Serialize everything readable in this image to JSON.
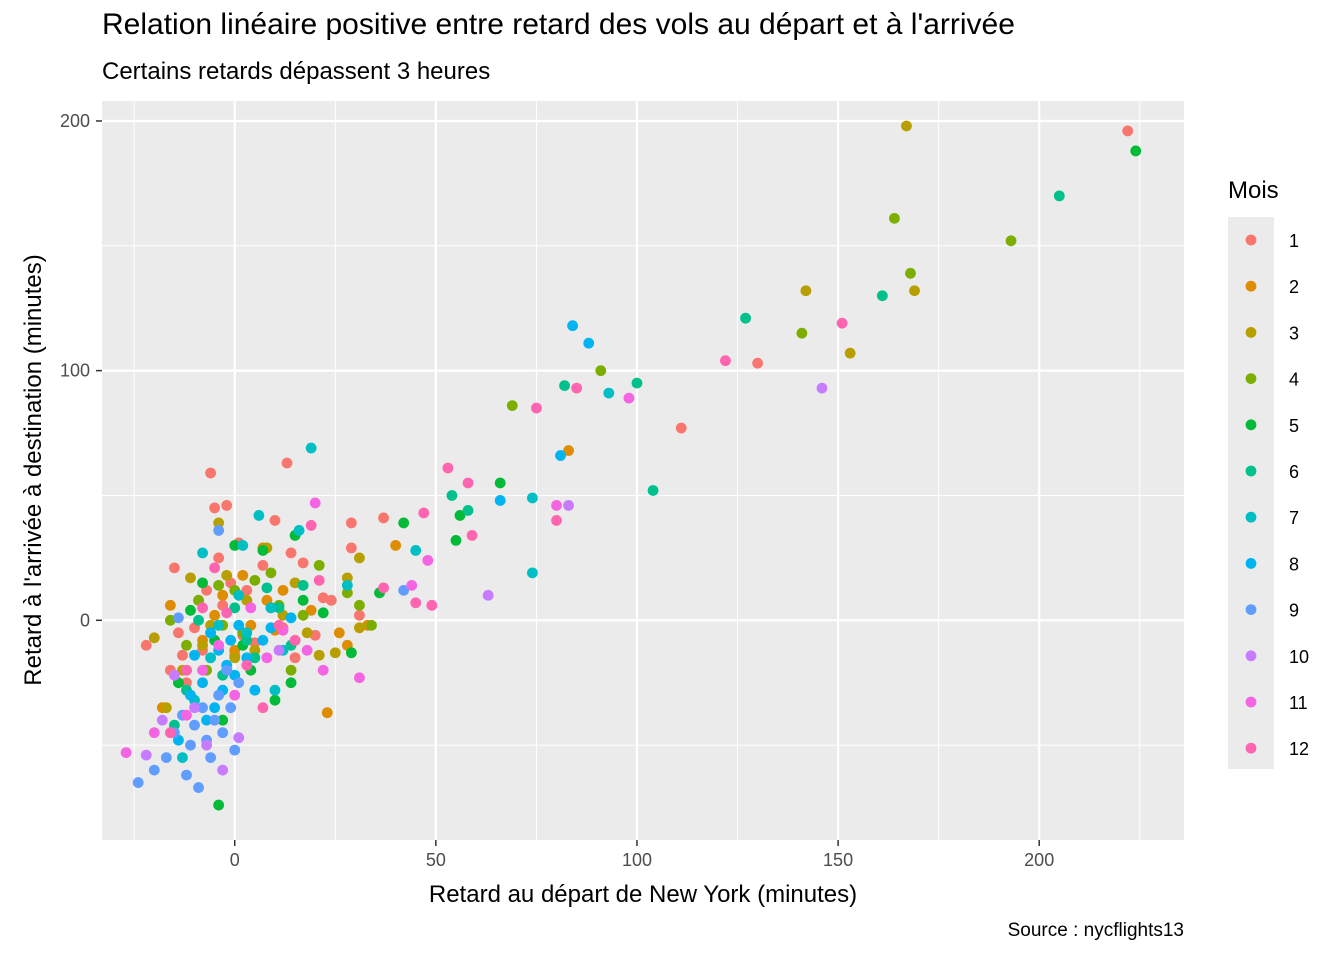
{
  "chart_data": {
    "type": "scatter",
    "title": "Relation linéaire positive entre retard des vols au départ et à l'arrivée",
    "subtitle": "Certains retards dépassent 3 heures",
    "caption": "Source : nycflights13",
    "xlabel": "Retard au départ de New York (minutes)",
    "ylabel": "Retard à l'arrivée à destination (minutes)",
    "xlim": [
      -33,
      236
    ],
    "ylim": [
      -88,
      208
    ],
    "x_ticks": [
      0,
      50,
      100,
      150,
      200
    ],
    "y_ticks": [
      0,
      100,
      200
    ],
    "grid": true,
    "legend": {
      "title": "Mois",
      "position": "right",
      "entries": [
        "1",
        "2",
        "3",
        "4",
        "5",
        "6",
        "7",
        "8",
        "9",
        "10",
        "11",
        "12"
      ]
    },
    "colors": [
      "#F8766D",
      "#DE8C00",
      "#B79F00",
      "#7CAE00",
      "#00BA38",
      "#00C08B",
      "#00BFC4",
      "#00B4F0",
      "#619CFF",
      "#C77CFF",
      "#F564E3",
      "#FF64B0"
    ],
    "series": [
      {
        "name": "1",
        "points": [
          [
            -22,
            -10
          ],
          [
            -16,
            -20
          ],
          [
            -15,
            21
          ],
          [
            -14,
            -5
          ],
          [
            -13,
            -14
          ],
          [
            -12,
            -25
          ],
          [
            -10,
            -3
          ],
          [
            -9,
            8
          ],
          [
            -8,
            -12
          ],
          [
            -7,
            12
          ],
          [
            -6,
            59
          ],
          [
            -5,
            45
          ],
          [
            -4,
            25
          ],
          [
            -3,
            6
          ],
          [
            -2,
            46
          ],
          [
            -1,
            15
          ],
          [
            0,
            -14
          ],
          [
            1,
            31
          ],
          [
            2,
            -6
          ],
          [
            3,
            12
          ],
          [
            5,
            -9
          ],
          [
            7,
            22
          ],
          [
            9,
            5
          ],
          [
            10,
            40
          ],
          [
            12,
            -3
          ],
          [
            13,
            63
          ],
          [
            14,
            27
          ],
          [
            15,
            -15
          ],
          [
            17,
            23
          ],
          [
            20,
            -6
          ],
          [
            22,
            9
          ],
          [
            24,
            8
          ],
          [
            29,
            39
          ],
          [
            29,
            29
          ],
          [
            31,
            2
          ],
          [
            37,
            41
          ],
          [
            130,
            103
          ],
          [
            111,
            77
          ],
          [
            222,
            196
          ]
        ]
      },
      {
        "name": "2",
        "points": [
          [
            -18,
            -35
          ],
          [
            -16,
            6
          ],
          [
            -12,
            -20
          ],
          [
            -8,
            -8
          ],
          [
            -5,
            2
          ],
          [
            -3,
            10
          ],
          [
            0,
            -12
          ],
          [
            2,
            18
          ],
          [
            4,
            -2
          ],
          [
            7,
            29
          ],
          [
            8,
            8
          ],
          [
            10,
            -4
          ],
          [
            12,
            12
          ],
          [
            15,
            -8
          ],
          [
            19,
            4
          ],
          [
            23,
            -37
          ],
          [
            26,
            -5
          ],
          [
            28,
            -10
          ],
          [
            33,
            -2
          ],
          [
            40,
            30
          ],
          [
            83,
            68
          ]
        ]
      },
      {
        "name": "3",
        "points": [
          [
            -20,
            -7
          ],
          [
            -17,
            -35
          ],
          [
            -13,
            -20
          ],
          [
            -11,
            17
          ],
          [
            -8,
            -10
          ],
          [
            -6,
            -2
          ],
          [
            -4,
            39
          ],
          [
            -2,
            18
          ],
          [
            0,
            -15
          ],
          [
            3,
            8
          ],
          [
            5,
            -12
          ],
          [
            8,
            29
          ],
          [
            12,
            2
          ],
          [
            15,
            15
          ],
          [
            18,
            -5
          ],
          [
            21,
            -14
          ],
          [
            25,
            -13
          ],
          [
            28,
            17
          ],
          [
            31,
            25
          ],
          [
            31,
            -3
          ],
          [
            142,
            132
          ],
          [
            153,
            107
          ],
          [
            167,
            198
          ],
          [
            169,
            132
          ]
        ]
      },
      {
        "name": "4",
        "points": [
          [
            -16,
            0
          ],
          [
            -12,
            -10
          ],
          [
            -9,
            8
          ],
          [
            -7,
            -20
          ],
          [
            -4,
            14
          ],
          [
            -3,
            -2
          ],
          [
            0,
            12
          ],
          [
            2,
            -5
          ],
          [
            5,
            16
          ],
          [
            9,
            19
          ],
          [
            11,
            6
          ],
          [
            14,
            -20
          ],
          [
            17,
            2
          ],
          [
            21,
            22
          ],
          [
            28,
            11
          ],
          [
            31,
            6
          ],
          [
            34,
            -2
          ],
          [
            69,
            86
          ],
          [
            91,
            100
          ],
          [
            141,
            115
          ],
          [
            164,
            161
          ],
          [
            168,
            139
          ],
          [
            193,
            152
          ]
        ]
      },
      {
        "name": "5",
        "points": [
          [
            -14,
            -25
          ],
          [
            -11,
            4
          ],
          [
            -8,
            15
          ],
          [
            -5,
            -8
          ],
          [
            -4,
            -74
          ],
          [
            -3,
            -40
          ],
          [
            0,
            30
          ],
          [
            2,
            -10
          ],
          [
            4,
            -20
          ],
          [
            7,
            28
          ],
          [
            10,
            -32
          ],
          [
            14,
            -25
          ],
          [
            15,
            34
          ],
          [
            17,
            8
          ],
          [
            22,
            3
          ],
          [
            29,
            -13
          ],
          [
            36,
            11
          ],
          [
            42,
            39
          ],
          [
            55,
            32
          ],
          [
            56,
            42
          ],
          [
            66,
            55
          ],
          [
            224,
            188
          ]
        ]
      },
      {
        "name": "6",
        "points": [
          [
            -15,
            -42
          ],
          [
            -12,
            -28
          ],
          [
            -9,
            0
          ],
          [
            -6,
            -5
          ],
          [
            -3,
            -22
          ],
          [
            0,
            5
          ],
          [
            3,
            -8
          ],
          [
            5,
            -15
          ],
          [
            8,
            13
          ],
          [
            11,
            5
          ],
          [
            14,
            -10
          ],
          [
            17,
            14
          ],
          [
            54,
            50
          ],
          [
            58,
            44
          ],
          [
            82,
            94
          ],
          [
            100,
            95
          ],
          [
            104,
            52
          ],
          [
            127,
            121
          ],
          [
            161,
            130
          ],
          [
            205,
            170
          ]
        ]
      },
      {
        "name": "7",
        "points": [
          [
            -13,
            -55
          ],
          [
            -10,
            -32
          ],
          [
            -8,
            27
          ],
          [
            -6,
            -15
          ],
          [
            -4,
            -2
          ],
          [
            -2,
            -20
          ],
          [
            1,
            10
          ],
          [
            2,
            30
          ],
          [
            3,
            -5
          ],
          [
            6,
            42
          ],
          [
            9,
            5
          ],
          [
            10,
            -28
          ],
          [
            12,
            -12
          ],
          [
            16,
            36
          ],
          [
            19,
            69
          ],
          [
            28,
            14
          ],
          [
            45,
            28
          ],
          [
            74,
            19
          ],
          [
            74,
            49
          ],
          [
            93,
            91
          ]
        ]
      },
      {
        "name": "8",
        "points": [
          [
            -14,
            -48
          ],
          [
            -11,
            -30
          ],
          [
            -10,
            -14
          ],
          [
            -8,
            -25
          ],
          [
            -7,
            -40
          ],
          [
            -6,
            -5
          ],
          [
            -5,
            -35
          ],
          [
            -4,
            -12
          ],
          [
            -3,
            -28
          ],
          [
            -2,
            -18
          ],
          [
            -1,
            -8
          ],
          [
            0,
            -22
          ],
          [
            1,
            -2
          ],
          [
            3,
            -15
          ],
          [
            5,
            -28
          ],
          [
            7,
            -8
          ],
          [
            9,
            -3
          ],
          [
            14,
            1
          ],
          [
            66,
            48
          ],
          [
            81,
            66
          ],
          [
            84,
            118
          ],
          [
            88,
            111
          ]
        ]
      },
      {
        "name": "9",
        "points": [
          [
            -24,
            -65
          ],
          [
            -20,
            -60
          ],
          [
            -17,
            -55
          ],
          [
            -15,
            -45
          ],
          [
            -14,
            1
          ],
          [
            -13,
            -38
          ],
          [
            -12,
            -62
          ],
          [
            -11,
            -50
          ],
          [
            -10,
            -42
          ],
          [
            -9,
            -67
          ],
          [
            -8,
            -35
          ],
          [
            -7,
            -48
          ],
          [
            -6,
            -55
          ],
          [
            -5,
            -40
          ],
          [
            -4,
            -30
          ],
          [
            -3,
            -45
          ],
          [
            -2,
            -20
          ],
          [
            -1,
            -35
          ],
          [
            0,
            -52
          ],
          [
            1,
            -25
          ],
          [
            -4,
            36
          ],
          [
            42,
            12
          ]
        ]
      },
      {
        "name": "10",
        "points": [
          [
            -22,
            -54
          ],
          [
            -18,
            -40
          ],
          [
            -15,
            -22
          ],
          [
            -10,
            -35
          ],
          [
            -7,
            -50
          ],
          [
            -3,
            -60
          ],
          [
            1,
            -47
          ],
          [
            11,
            -12
          ],
          [
            63,
            10
          ],
          [
            83,
            46
          ],
          [
            146,
            93
          ]
        ]
      },
      {
        "name": "11",
        "points": [
          [
            -27,
            -53
          ],
          [
            -20,
            -45
          ],
          [
            -12,
            -38
          ],
          [
            -8,
            -20
          ],
          [
            -4,
            -10
          ],
          [
            0,
            -30
          ],
          [
            4,
            5
          ],
          [
            8,
            -15
          ],
          [
            12,
            -4
          ],
          [
            18,
            -12
          ],
          [
            20,
            47
          ],
          [
            22,
            -20
          ],
          [
            31,
            -23
          ],
          [
            44,
            14
          ],
          [
            48,
            24
          ],
          [
            80,
            46
          ],
          [
            98,
            89
          ]
        ]
      },
      {
        "name": "12",
        "points": [
          [
            -16,
            -45
          ],
          [
            -12,
            -20
          ],
          [
            -8,
            5
          ],
          [
            -5,
            21
          ],
          [
            -2,
            3
          ],
          [
            3,
            -18
          ],
          [
            7,
            -35
          ],
          [
            11,
            -2
          ],
          [
            15,
            -8
          ],
          [
            19,
            38
          ],
          [
            21,
            16
          ],
          [
            37,
            13
          ],
          [
            45,
            7
          ],
          [
            47,
            43
          ],
          [
            49,
            6
          ],
          [
            53,
            61
          ],
          [
            58,
            55
          ],
          [
            59,
            34
          ],
          [
            75,
            85
          ],
          [
            80,
            40
          ],
          [
            85,
            93
          ],
          [
            122,
            104
          ],
          [
            151,
            119
          ]
        ]
      }
    ]
  }
}
